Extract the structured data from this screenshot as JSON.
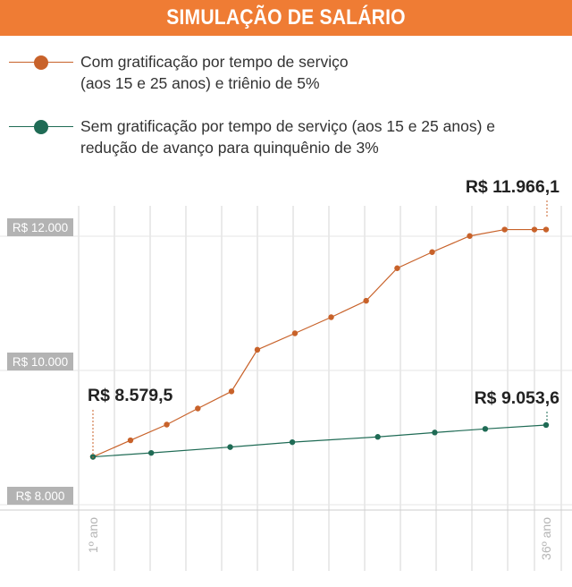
{
  "title": "SIMULAÇÃO DE SALÁRIO",
  "colors": {
    "header": "#ef7c34",
    "series1": "#c8622a",
    "series2": "#1f6b55",
    "grid": "#d6d6d6",
    "tick_bg": "#b3b3b3"
  },
  "chart_data": {
    "type": "line",
    "title": "SIMULAÇÃO DE SALÁRIO",
    "xlabel": "",
    "ylabel": "",
    "xlim": [
      1,
      36
    ],
    "ylim": [
      7800,
      12300
    ],
    "yticks": [
      8000,
      10000,
      12000
    ],
    "ytick_labels": [
      "R$ 8.000",
      "R$ 10.000",
      "R$ 12.000"
    ],
    "x_labels": [
      {
        "x": 1,
        "label": "1º ano"
      },
      {
        "x": 36,
        "label": "36º ano"
      }
    ],
    "grid": true,
    "legend_position": "top-left",
    "series": [
      {
        "name": "Com gratificação por tempo de serviço (aos 15 e 25 anos) e triênio de 5%",
        "color": "#c8622a",
        "x": [
          1,
          3.9,
          6.7,
          9.1,
          11.7,
          13.7,
          16.6,
          19.4,
          22.1,
          24.5,
          27.2,
          30.1,
          32.8,
          35.1,
          36
        ],
        "y": [
          8579.5,
          8826,
          9060,
          9300,
          9555,
          10175,
          10420,
          10660,
          10905,
          11390,
          11630,
          11870,
          11966.1,
          11966.1,
          11966.1
        ]
      },
      {
        "name": "Sem gratificação por tempo de serviço (aos 15 e 25 anos) e redução de avanço para quinquênio de 3%",
        "color": "#1f6b55",
        "x": [
          1,
          5.5,
          11.6,
          16.4,
          23.0,
          27.4,
          31.3,
          36
        ],
        "y": [
          8579.5,
          8638,
          8725,
          8798,
          8877,
          8942,
          8996,
          9053.6
        ]
      }
    ],
    "annotations": [
      {
        "text": "R$ 8.579,5",
        "x": 1,
        "y": 8579.5,
        "series": 0
      },
      {
        "text": "R$ 11.966,1",
        "x": 36,
        "y": 11966.1,
        "series": 0
      },
      {
        "text": "R$ 9.053,6",
        "x": 36,
        "y": 9053.6,
        "series": 1
      }
    ]
  }
}
